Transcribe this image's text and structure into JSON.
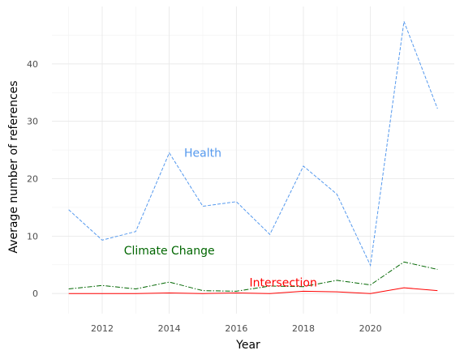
{
  "chart_data": {
    "type": "line",
    "title": "",
    "xlabel": "Year",
    "ylabel": "Average number of references",
    "x": [
      2011,
      2012,
      2013,
      2014,
      2015,
      2016,
      2017,
      2018,
      2019,
      2020,
      2021,
      2022
    ],
    "xlim": [
      2010.5,
      2022.5
    ],
    "ylim": [
      -3.5,
      50
    ],
    "x_ticks": [
      "2012",
      "2014",
      "2016",
      "2018",
      "2020"
    ],
    "y_ticks": [
      "0",
      "10",
      "20",
      "30",
      "40"
    ],
    "grid": true,
    "legend": "none (direct labels)",
    "series": [
      {
        "name": "Health",
        "color": "#5599ee",
        "dash": "dashed",
        "label_at": [
          2015.0,
          24.5
        ],
        "values": [
          14.6,
          9.3,
          10.8,
          24.5,
          15.2,
          16.0,
          10.3,
          22.2,
          17.3,
          4.9,
          47.4,
          32.2
        ]
      },
      {
        "name": "Climate Change",
        "color": "#006600",
        "dash": "dashdot",
        "label_at": [
          2014.0,
          7.5
        ],
        "values": [
          0.8,
          1.4,
          0.8,
          2.0,
          0.5,
          0.4,
          1.3,
          1.2,
          2.3,
          1.5,
          5.5,
          4.2
        ]
      },
      {
        "name": "Intersection",
        "color": "#ff0000",
        "dash": "solid",
        "label_at": [
          2017.4,
          1.9
        ],
        "values": [
          0.0,
          0.0,
          0.0,
          0.1,
          0.0,
          0.1,
          0.0,
          0.4,
          0.3,
          0.0,
          1.0,
          0.5
        ]
      }
    ]
  }
}
